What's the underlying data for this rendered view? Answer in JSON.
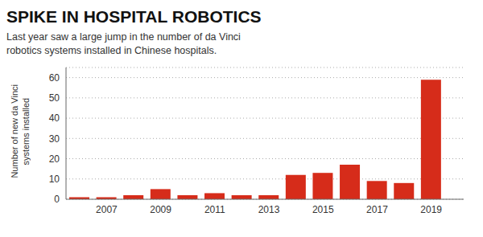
{
  "chart_data": {
    "type": "bar",
    "title": "SPIKE IN HOSPITAL ROBOTICS",
    "subtitle": "Last year saw a large jump in the number of da Vinci\nrobotics systems installed in Chinese hospitals.",
    "ylabel": "Number of new da Vinci\nsystems installed",
    "x": [
      2006,
      2007,
      2008,
      2009,
      2010,
      2011,
      2012,
      2013,
      2014,
      2015,
      2016,
      2017,
      2018,
      2019
    ],
    "values": [
      1,
      1,
      2,
      5,
      2,
      3,
      2,
      2,
      12,
      13,
      17,
      9,
      8,
      59
    ],
    "color": "#d62c1a",
    "xlim": [
      2005.5,
      2020.2
    ],
    "xticks": [
      2007,
      2009,
      2011,
      2013,
      2015,
      2017,
      2019
    ],
    "ylim": [
      0,
      65
    ],
    "yticks": [
      0,
      10,
      20,
      30,
      40,
      50,
      60
    ],
    "grid": true
  }
}
